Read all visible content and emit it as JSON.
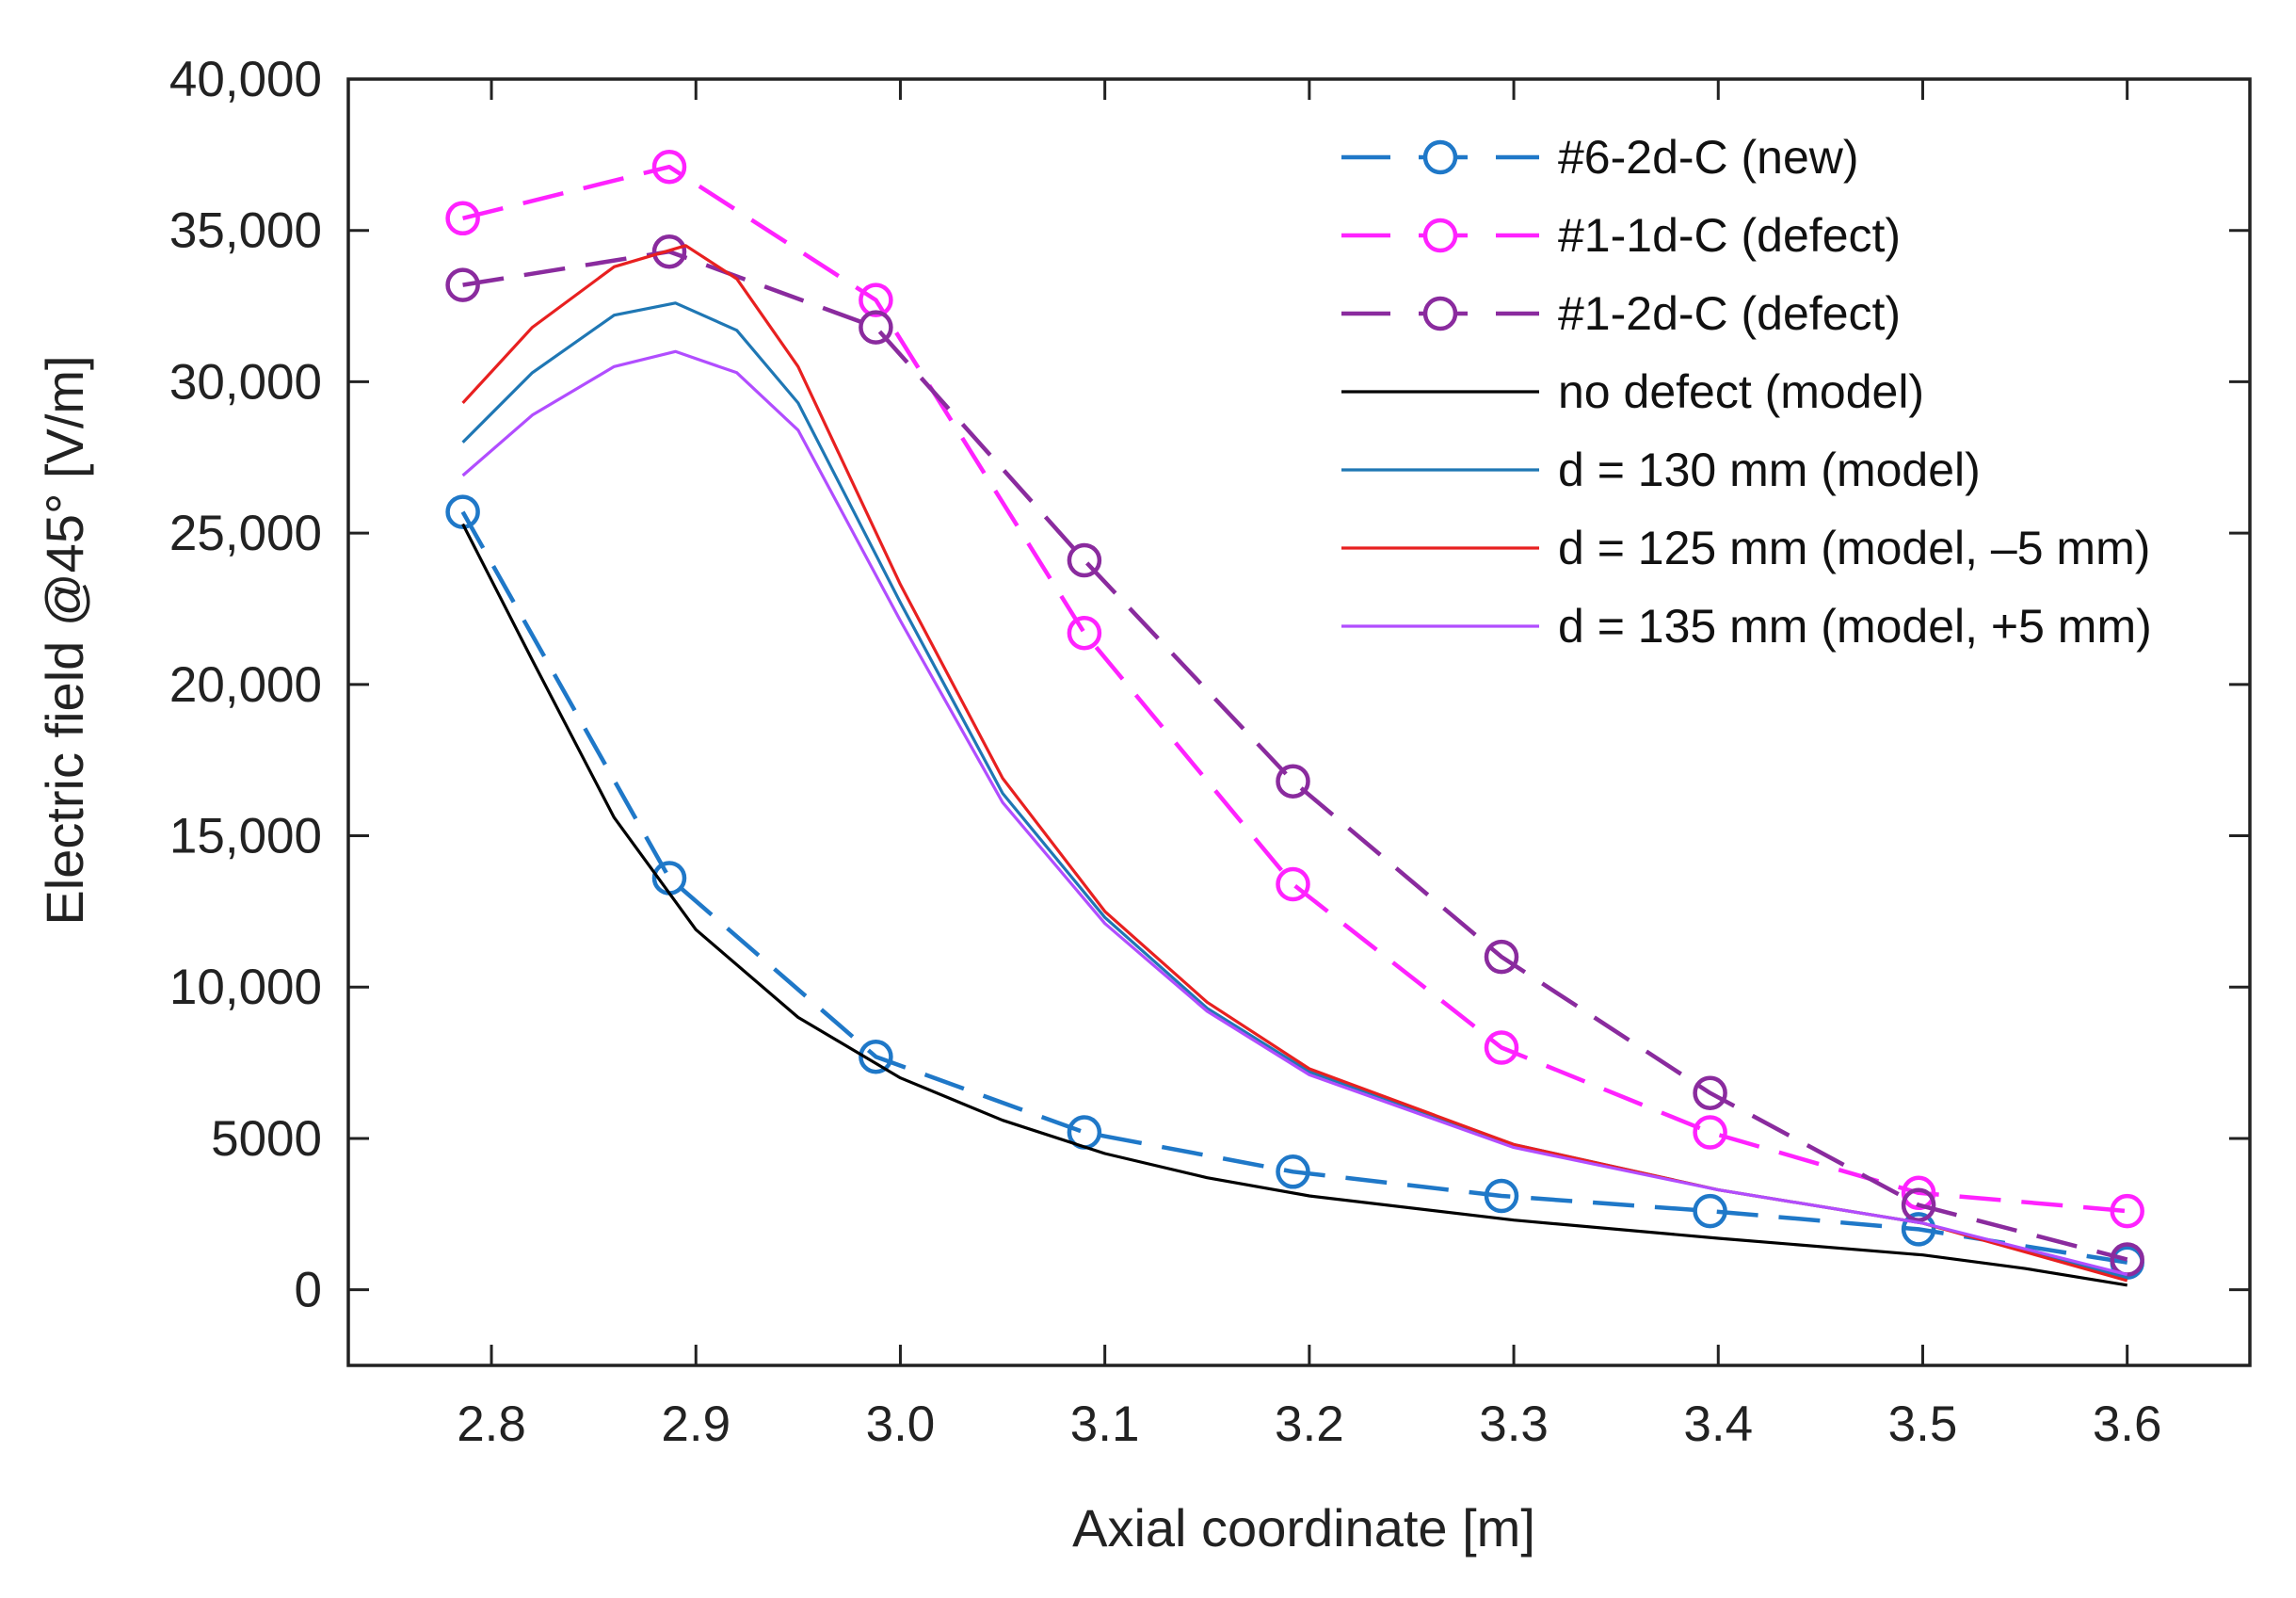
{
  "chart_data": {
    "type": "line",
    "title": "",
    "xlabel": "Axial coordinate [m]",
    "ylabel": "Electric field @45° [V/m]",
    "xlim": [
      2.73,
      3.66
    ],
    "ylim": [
      -2500,
      40000
    ],
    "xticks": [
      2.8,
      2.9,
      3.0,
      3.1,
      3.2,
      3.3,
      3.4,
      3.5,
      3.6
    ],
    "xtick_labels": [
      "2.8",
      "2.9",
      "3.0",
      "3.1",
      "3.2",
      "3.3",
      "3.4",
      "3.5",
      "3.6"
    ],
    "yticks": [
      0,
      5000,
      10000,
      15000,
      20000,
      25000,
      30000,
      35000,
      40000
    ],
    "ytick_labels": [
      "0",
      "5000",
      "10,000",
      "15,000",
      "20,000",
      "25,000",
      "30,000",
      "35,000",
      "40,000"
    ],
    "grid": false,
    "legend_position": "top-right",
    "series": [
      {
        "name": "#6-2d-C (new)",
        "color": "#1f78c8",
        "style": "dashed",
        "marker": "circle",
        "x": [
          2.786,
          2.887,
          2.988,
          3.09,
          3.192,
          3.294,
          3.396,
          3.498,
          3.6
        ],
        "y": [
          25700,
          13600,
          7700,
          5200,
          3900,
          3100,
          2600,
          2000,
          900
        ]
      },
      {
        "name": "#1-1d-C (defect)",
        "color": "#ff22ff",
        "style": "dashed",
        "marker": "circle",
        "x": [
          2.786,
          2.887,
          2.988,
          3.09,
          3.192,
          3.294,
          3.396,
          3.498,
          3.6
        ],
        "y": [
          35400,
          37100,
          32700,
          21700,
          13400,
          8000,
          5200,
          3200,
          2600
        ]
      },
      {
        "name": "#1-2d-C (defect)",
        "color": "#8a2b9e",
        "style": "dashed",
        "marker": "circle",
        "x": [
          2.786,
          2.887,
          2.988,
          3.09,
          3.192,
          3.294,
          3.396,
          3.498,
          3.6
        ],
        "y": [
          33200,
          34300,
          31800,
          24100,
          16800,
          11000,
          6500,
          2800,
          1000
        ]
      },
      {
        "name": "no defect (model)",
        "color": "#000000",
        "style": "solid",
        "marker": "none",
        "x": [
          2.786,
          2.82,
          2.86,
          2.9,
          2.95,
          3.0,
          3.05,
          3.1,
          3.15,
          3.2,
          3.3,
          3.4,
          3.5,
          3.55,
          3.6
        ],
        "y": [
          25300,
          20800,
          15600,
          11900,
          9000,
          7000,
          5600,
          4500,
          3700,
          3100,
          2300,
          1700,
          1150,
          700,
          150
        ]
      },
      {
        "name": "d = 130 mm (model)",
        "color": "#1f77b4",
        "style": "solid",
        "marker": "none",
        "x": [
          2.786,
          2.82,
          2.86,
          2.89,
          2.92,
          2.95,
          3.0,
          3.05,
          3.1,
          3.15,
          3.2,
          3.3,
          3.4,
          3.5,
          3.6
        ],
        "y": [
          28000,
          30300,
          32200,
          32600,
          31700,
          29300,
          22700,
          16400,
          12300,
          9300,
          7200,
          4800,
          3300,
          2200,
          400
        ]
      },
      {
        "name": "d = 125 mm (model, –5 mm)",
        "color": "#e82020",
        "style": "solid",
        "marker": "none",
        "x": [
          2.786,
          2.82,
          2.86,
          2.895,
          2.92,
          2.95,
          3.0,
          3.05,
          3.1,
          3.15,
          3.2,
          3.3,
          3.4,
          3.5,
          3.6
        ],
        "y": [
          29300,
          31800,
          33800,
          34500,
          33400,
          30500,
          23300,
          16900,
          12500,
          9500,
          7300,
          4800,
          3300,
          2200,
          300
        ]
      },
      {
        "name": "d = 135 mm (model, +5 mm)",
        "color": "#b14dff",
        "style": "solid",
        "marker": "none",
        "x": [
          2.786,
          2.82,
          2.86,
          2.89,
          2.92,
          2.95,
          3.0,
          3.05,
          3.1,
          3.15,
          3.2,
          3.3,
          3.4,
          3.5,
          3.6
        ],
        "y": [
          26900,
          28900,
          30500,
          31000,
          30300,
          28400,
          22100,
          16100,
          12100,
          9200,
          7100,
          4700,
          3300,
          2200,
          500
        ]
      }
    ]
  }
}
